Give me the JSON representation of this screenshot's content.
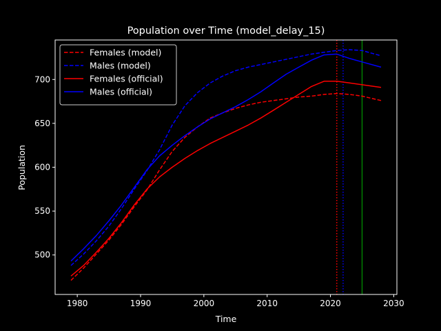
{
  "chart_data": {
    "type": "line",
    "title": "Population over Time (model_delay_15)",
    "xlabel": "Time",
    "ylabel": "Population",
    "xlim": [
      1976.5,
      2030.5
    ],
    "ylim": [
      455,
      745
    ],
    "xticks": [
      1980,
      1990,
      2000,
      2010,
      2020,
      2030
    ],
    "yticks": [
      500,
      550,
      600,
      650,
      700
    ],
    "grid": false,
    "legend_position": "upper-left",
    "series": [
      {
        "name": "Females (model)",
        "color": "#ff0000",
        "style": "dashed",
        "x": [
          1979,
          1981,
          1983,
          1985,
          1987,
          1989,
          1991,
          1993,
          1995,
          1997,
          1999,
          2001,
          2003,
          2005,
          2007,
          2009,
          2011,
          2013,
          2015,
          2017,
          2019,
          2021,
          2023,
          2025,
          2028
        ],
        "y": [
          471,
          485,
          501,
          517,
          535,
          555,
          574,
          597,
          618,
          634,
          646,
          656,
          662,
          667,
          671,
          674,
          676,
          678,
          680,
          681,
          683,
          684,
          683,
          681,
          676
        ]
      },
      {
        "name": "Males (model)",
        "color": "#0000ff",
        "style": "dashed",
        "x": [
          1979,
          1981,
          1983,
          1985,
          1987,
          1989,
          1991,
          1993,
          1995,
          1997,
          1999,
          2001,
          2003,
          2005,
          2007,
          2009,
          2011,
          2013,
          2015,
          2017,
          2019,
          2021,
          2023,
          2025,
          2028
        ],
        "y": [
          488,
          501,
          516,
          533,
          553,
          575,
          596,
          620,
          648,
          670,
          685,
          696,
          704,
          710,
          714,
          717,
          720,
          723,
          726,
          729,
          731,
          733,
          734,
          733,
          727
        ]
      },
      {
        "name": "Females (official)",
        "color": "#ff0000",
        "style": "solid",
        "x": [
          1979,
          1981,
          1983,
          1985,
          1987,
          1989,
          1991,
          1993,
          1995,
          1997,
          1999,
          2001,
          2003,
          2005,
          2007,
          2009,
          2011,
          2013,
          2015,
          2017,
          2019,
          2021,
          2023,
          2025,
          2028
        ],
        "y": [
          476,
          488,
          503,
          519,
          537,
          557,
          575,
          589,
          600,
          610,
          619,
          627,
          634,
          641,
          648,
          656,
          665,
          674,
          683,
          692,
          698,
          698,
          696,
          694,
          691
        ]
      },
      {
        "name": "Males (official)",
        "color": "#0000ff",
        "style": "solid",
        "x": [
          1979,
          1981,
          1983,
          1985,
          1987,
          1989,
          1991,
          1993,
          1995,
          1997,
          1999,
          2001,
          2003,
          2005,
          2007,
          2009,
          2011,
          2013,
          2015,
          2017,
          2019,
          2021,
          2023,
          2025,
          2028
        ],
        "y": [
          493,
          507,
          522,
          539,
          557,
          577,
          597,
          613,
          625,
          636,
          646,
          655,
          662,
          669,
          677,
          686,
          696,
          706,
          714,
          722,
          728,
          729,
          724,
          720,
          714
        ]
      }
    ],
    "vlines": [
      {
        "x": 2021.0,
        "color": "#ff0000",
        "style": "dotted"
      },
      {
        "x": 2022.0,
        "color": "#0000ff",
        "style": "dotted"
      },
      {
        "x": 2025.0,
        "color": "#008000",
        "style": "solid"
      }
    ]
  }
}
